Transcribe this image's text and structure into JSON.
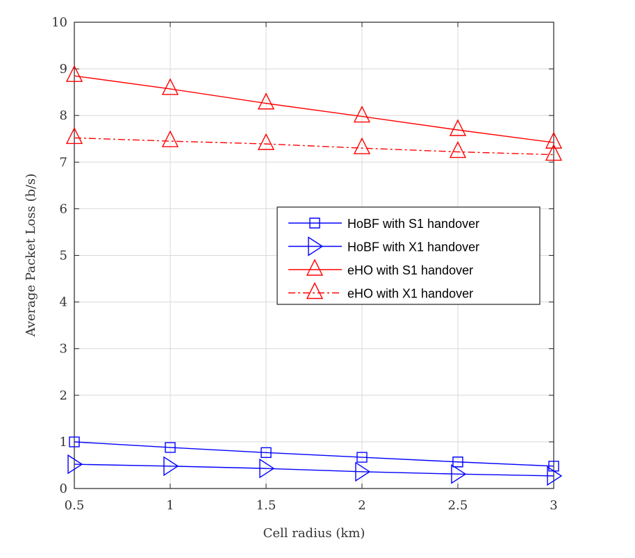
{
  "chart_data": {
    "type": "line",
    "xlabel": "Cell radius (km)",
    "ylabel": "Average Packet Loss (b/s)",
    "xlim": [
      0.5,
      3
    ],
    "ylim": [
      0,
      10
    ],
    "xticks": [
      "0.5",
      "1",
      "1.5",
      "2",
      "2.5",
      "3"
    ],
    "yticks": [
      "0",
      "1",
      "2",
      "3",
      "4",
      "5",
      "6",
      "7",
      "8",
      "9",
      "10"
    ],
    "grid": true,
    "legend_position": "center-right",
    "x": [
      0.5,
      1,
      1.5,
      2,
      2.5,
      3
    ],
    "series": [
      {
        "name": "HoBF with S1 handover",
        "values": [
          1.0,
          0.88,
          0.77,
          0.67,
          0.57,
          0.48
        ],
        "color": "#0000ff",
        "marker": "square",
        "dash": "solid"
      },
      {
        "name": "HoBF with X1 handover",
        "values": [
          0.52,
          0.48,
          0.43,
          0.36,
          0.31,
          0.27
        ],
        "color": "#0000ff",
        "marker": "triangle-right",
        "dash": "solid"
      },
      {
        "name": "eHO with S1 handover",
        "values": [
          8.85,
          8.57,
          8.26,
          7.98,
          7.69,
          7.42
        ],
        "color": "#ff0000",
        "marker": "triangle-up",
        "dash": "solid"
      },
      {
        "name": "eHO with X1 handover",
        "values": [
          7.52,
          7.45,
          7.39,
          7.3,
          7.22,
          7.16
        ],
        "color": "#ff0000",
        "marker": "triangle-up",
        "dash": "dashdot"
      }
    ]
  }
}
